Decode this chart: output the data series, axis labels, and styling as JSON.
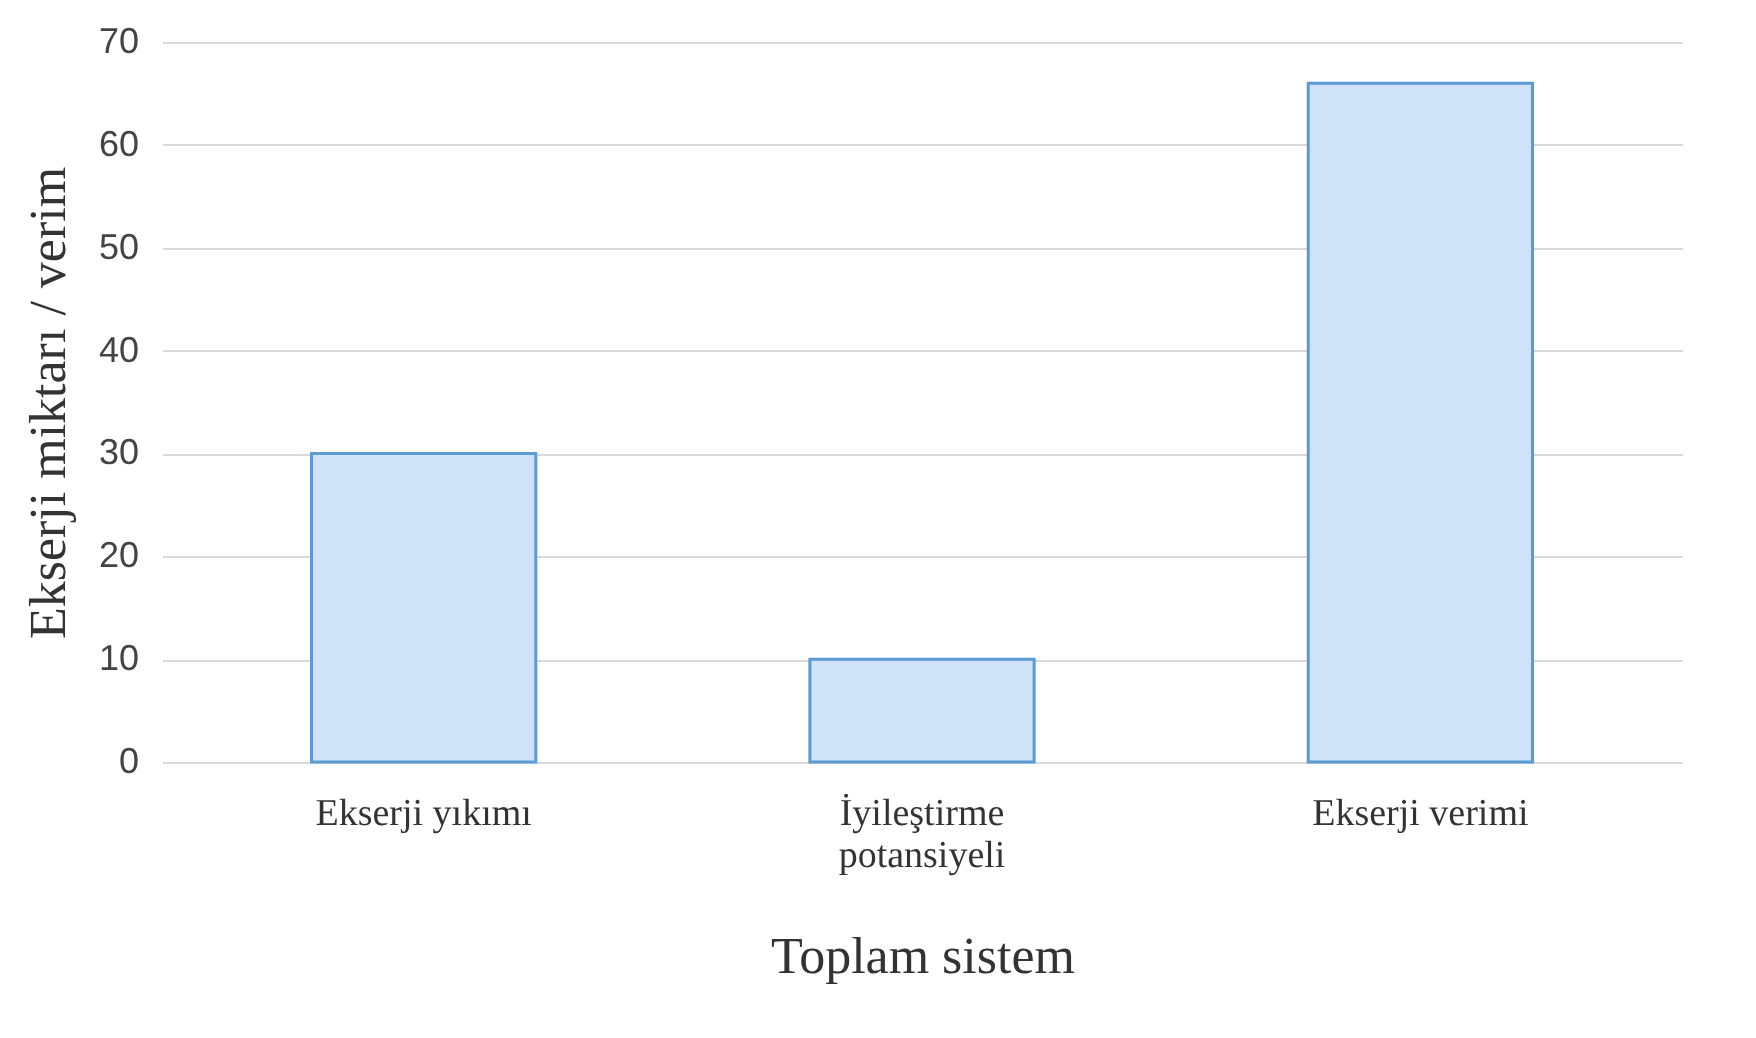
{
  "chart_data": {
    "type": "bar",
    "xlabel": "Toplam sistem",
    "ylabel": "Ekserji miktarı / verim",
    "categories": [
      "Ekserji yıkımı",
      "İyileştirme potansiyeli",
      "Ekserji verimi"
    ],
    "values": [
      30,
      10,
      66
    ],
    "color": "#cfe2f7",
    "ylim": [
      0,
      70
    ],
    "yticks": [
      0,
      10,
      20,
      30,
      40,
      50,
      60,
      70
    ],
    "grid": "y"
  }
}
